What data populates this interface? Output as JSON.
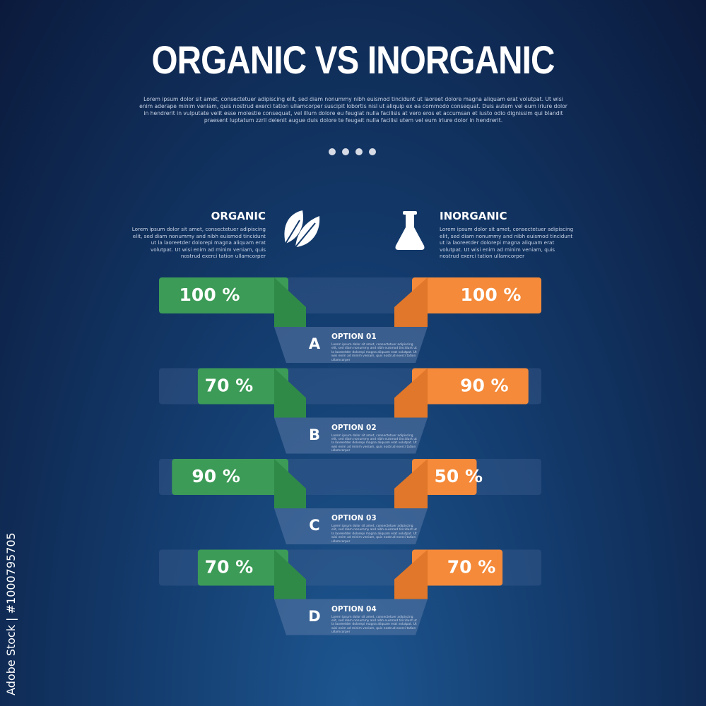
{
  "title": "ORGANIC VS INORGANIC",
  "description": "Lorem ipsum dolor sit amet, consectetuer adipiscing elit, sed diam nonummy nibh euismod tincidunt ut laoreet dolore magna aliquam erat volutpat. Ut wisi enim aderape minim veniam, quis nostrud exerci tation ullamcorper suscipit lobortis nisl ut aliquip ex ea commodo consequat. Duis autem vel eum iriure dolor in hendrerit in vulputate velit esse molestie consequat, vel illum dolore eu feugiat nulla facilisis at vero eros et accumsan et iusto odio dignissim qui blandit praesent luptatum zzril delenit augue duis dolore te feugait nulla facilisi utem vel eum iriure dolor in hendrerit.",
  "left": {
    "title": "ORGANIC",
    "text": "Lorem ipsum dolor sit amet, consectetuer adipiscing elit, sed diam nonummy and nibh euismod tincidunt ut la laoreetder dolorepi magna aliquam erat volutpat. Ut wisi enim ad minim veniam, quis nostrud exerci tation ullamcorper"
  },
  "right": {
    "title": "INORGANIC",
    "text": "Lorem ipsum dolor sit amet, consectetuer adipiscing elit, sed diam nonummy and nibh euismod tincidunt ut la laoreetder dolorepi magna aliquam erat volutpat. Ut wisi enim ad minim veniam, quis nostrud exerci tation ullamcorper"
  },
  "options": [
    {
      "letter": "A",
      "title": "OPTION 01",
      "text": "Lorem ipsum dolor sit amet, consectetuer adipiscing elit, sed diam nonummy and nibh euismod tincidunt ut la laoreetder dolorepi magna aliquam erat volutpat. Ut wisi enim ad minim veniam, quis nostrud exerci tation ullamcorper",
      "organic": 100,
      "organic_label": "100 %",
      "inorganic": 100,
      "inorganic_label": "100 %"
    },
    {
      "letter": "B",
      "title": "OPTION 02",
      "text": "Lorem ipsum dolor sit amet, consectetuer adipiscing elit, sed diam nonummy and nibh euismod tincidunt ut la laoreetder dolorepi magna aliquam erat volutpat. Ut wisi enim ad minim veniam, quis nostrud exerci tation ullamcorper",
      "organic": 70,
      "organic_label": "70 %",
      "inorganic": 90,
      "inorganic_label": "90 %"
    },
    {
      "letter": "C",
      "title": "OPTION 03",
      "text": "Lorem ipsum dolor sit amet, consectetuer adipiscing elit, sed diam nonummy and nibh euismod tincidunt ut la laoreetder dolorepi magna aliquam erat volutpat. Ut wisi enim ad minim veniam, quis nostrud exerci tation ullamcorper",
      "organic": 90,
      "organic_label": "90 %",
      "inorganic": 50,
      "inorganic_label": "50 %"
    },
    {
      "letter": "D",
      "title": "OPTION 04",
      "text": "Lorem ipsum dolor sit amet, consectetuer adipiscing elit, sed diam nonummy and nibh euismod tincidunt ut la laoreetder dolorepi magna aliquam erat volutpat. Ut wisi enim ad minim veniam, quis nostrud exerci tation ullamcorper",
      "organic": 70,
      "organic_label": "70 %",
      "inorganic": 70,
      "inorganic_label": "70 %"
    }
  ],
  "credit": "Adobe Stock | #1000795705"
}
